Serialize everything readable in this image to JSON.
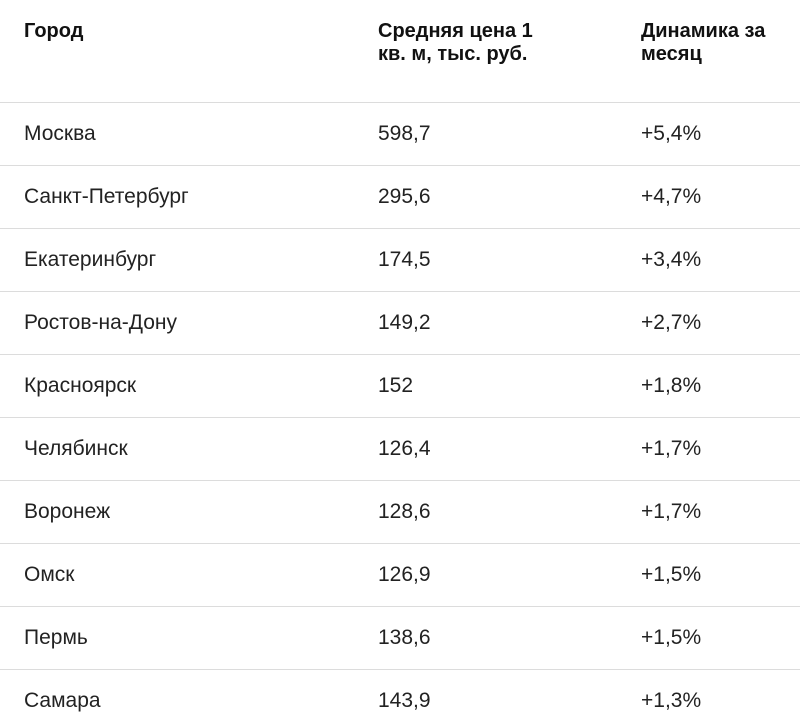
{
  "table": {
    "header": [
      "Город",
      "Средняя цена 1 кв. м, тыс. руб.",
      "Динамика за месяц"
    ],
    "rows": [
      [
        "Москва",
        "598,7",
        "+5,4%"
      ],
      [
        "Санкт-Петербург",
        "295,6",
        "+4,7%"
      ],
      [
        "Екатеринбург",
        "174,5",
        "+3,4%"
      ],
      [
        "Ростов-на-Дону",
        "149,2",
        "+2,7%"
      ],
      [
        "Красноярск",
        "152",
        "+1,8%"
      ],
      [
        "Челябинск",
        "126,4",
        "+1,7%"
      ],
      [
        "Воронеж",
        "128,6",
        "+1,7%"
      ],
      [
        "Омск",
        "126,9",
        "+1,5%"
      ],
      [
        "Пермь",
        "138,6",
        "+1,5%"
      ],
      [
        "Самара",
        "143,9",
        "+1,3%"
      ]
    ]
  }
}
